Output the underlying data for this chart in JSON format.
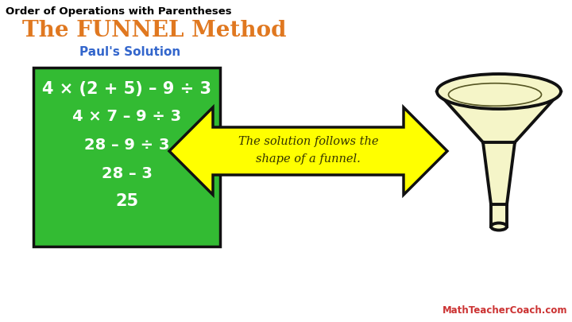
{
  "title": "Order of Operations with Parentheses",
  "funnel_title": "The FUNNEL Method",
  "subtitle": "Paul's Solution",
  "equations": [
    "4 × (2 + 5) – 9 ÷ 3",
    "4 × 7 – 9 ÷ 3",
    "28 – 9 ÷ 3",
    "28 – 3",
    "25"
  ],
  "arrow_text_line1": "The solution follows the",
  "arrow_text_line2": "shape of a funnel.",
  "background_color": "#ffffff",
  "green_box_color": "#33bb33",
  "arrow_color": "#ffff00",
  "title_color": "#000000",
  "funnel_title_color": "#e07820",
  "subtitle_color": "#3366cc",
  "equation_color": "#ffffff",
  "arrow_text_color": "#333300",
  "watermark": "MathTeacherCoach.com",
  "watermark_color": "#cc3333",
  "funnel_fill": "#f5f5c8",
  "funnel_outline": "#111111"
}
